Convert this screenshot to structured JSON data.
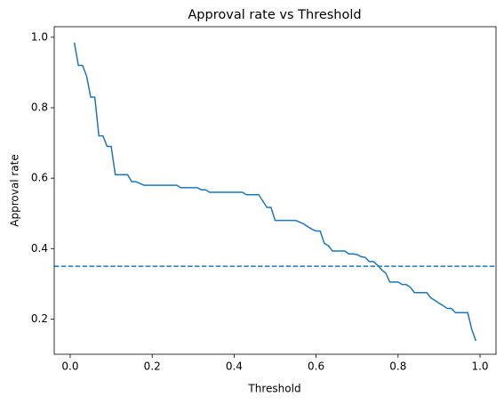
{
  "chart_data": {
    "type": "line",
    "title": "Approval rate vs Threshold",
    "xlabel": "Threshold",
    "ylabel": "Approval rate",
    "x": [
      0.01,
      0.02,
      0.03,
      0.04,
      0.05,
      0.06,
      0.07,
      0.08,
      0.09,
      0.1,
      0.11,
      0.12,
      0.13,
      0.14,
      0.15,
      0.16,
      0.17,
      0.18,
      0.19,
      0.2,
      0.21,
      0.22,
      0.23,
      0.24,
      0.25,
      0.26,
      0.27,
      0.28,
      0.29,
      0.3,
      0.31,
      0.32,
      0.33,
      0.34,
      0.35,
      0.36,
      0.37,
      0.38,
      0.39,
      0.4,
      0.41,
      0.42,
      0.43,
      0.44,
      0.45,
      0.46,
      0.47,
      0.48,
      0.49,
      0.5,
      0.51,
      0.52,
      0.53,
      0.54,
      0.55,
      0.56,
      0.57,
      0.58,
      0.59,
      0.6,
      0.61,
      0.62,
      0.63,
      0.64,
      0.65,
      0.66,
      0.67,
      0.68,
      0.69,
      0.7,
      0.71,
      0.72,
      0.73,
      0.74,
      0.75,
      0.76,
      0.77,
      0.78,
      0.79,
      0.8,
      0.81,
      0.82,
      0.83,
      0.84,
      0.85,
      0.86,
      0.87,
      0.88,
      0.89,
      0.9,
      0.91,
      0.92,
      0.93,
      0.94,
      0.95,
      0.96,
      0.97,
      0.98,
      0.99
    ],
    "series": [
      {
        "name": "Approval rate",
        "color": "#1f77b4",
        "values": [
          0.985,
          0.92,
          0.92,
          0.89,
          0.83,
          0.83,
          0.72,
          0.72,
          0.69,
          0.69,
          0.61,
          0.61,
          0.61,
          0.61,
          0.59,
          0.59,
          0.585,
          0.58,
          0.58,
          0.58,
          0.58,
          0.58,
          0.58,
          0.58,
          0.58,
          0.58,
          0.573,
          0.573,
          0.573,
          0.573,
          0.573,
          0.567,
          0.567,
          0.56,
          0.56,
          0.56,
          0.56,
          0.56,
          0.56,
          0.56,
          0.56,
          0.56,
          0.553,
          0.553,
          0.553,
          0.553,
          0.535,
          0.517,
          0.517,
          0.48,
          0.48,
          0.48,
          0.48,
          0.48,
          0.48,
          0.475,
          0.47,
          0.462,
          0.455,
          0.45,
          0.45,
          0.415,
          0.408,
          0.393,
          0.393,
          0.393,
          0.393,
          0.385,
          0.385,
          0.383,
          0.377,
          0.375,
          0.363,
          0.363,
          0.353,
          0.34,
          0.33,
          0.305,
          0.305,
          0.305,
          0.298,
          0.298,
          0.29,
          0.275,
          0.275,
          0.275,
          0.275,
          0.26,
          0.253,
          0.245,
          0.238,
          0.23,
          0.23,
          0.218,
          0.218,
          0.218,
          0.218,
          0.17,
          0.138
        ]
      }
    ],
    "hline": 0.35,
    "hline_color": "#1f77b4",
    "hline_style": "dashed",
    "xlim": [
      -0.039,
      1.039
    ],
    "ylim": [
      0.1,
      1.03
    ],
    "xticks": [
      {
        "value": 0,
        "label": "0.0"
      },
      0.2,
      0.4,
      0.6,
      0.8,
      {
        "value": 1,
        "label": "1.0"
      }
    ],
    "yticks": [
      0.2,
      0.4,
      0.6,
      0.8,
      {
        "value": 1,
        "label": "1.0"
      }
    ],
    "grid": false
  }
}
